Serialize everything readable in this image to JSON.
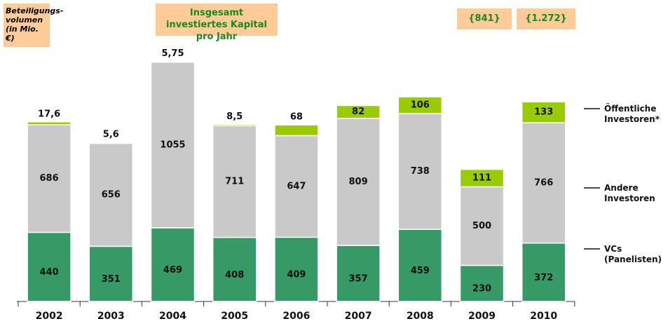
{
  "chart_data": {
    "type": "stacked-bar",
    "title": "Insgesamt investiertes Kapital pro Jahr",
    "y_label": "Beteiligungs-volumen (in Mio. €)",
    "annotations": [
      "{841}",
      "{1.272}"
    ],
    "categories": [
      "2002",
      "2003",
      "2004",
      "2005",
      "2006",
      "2007",
      "2008",
      "2009",
      "2010"
    ],
    "series": [
      {
        "name": "VCs (Panelisten)",
        "color": "#379a66",
        "values": [
          440,
          351,
          469,
          408,
          409,
          357,
          459,
          230,
          372
        ]
      },
      {
        "name": "Andere Investoren",
        "color": "#c9c9c9",
        "values": [
          686,
          656,
          1055,
          711,
          647,
          809,
          738,
          500,
          766
        ]
      },
      {
        "name": "Öffentliche Investoren*",
        "color": "#99cc00",
        "values": [
          17.6,
          5.6,
          5.75,
          8.5,
          68,
          82,
          106,
          111,
          133
        ],
        "value_labels": [
          "17,6",
          "5,6",
          "5,75",
          "8,5",
          "68",
          "82",
          "106",
          "111",
          "133"
        ]
      }
    ]
  }
}
